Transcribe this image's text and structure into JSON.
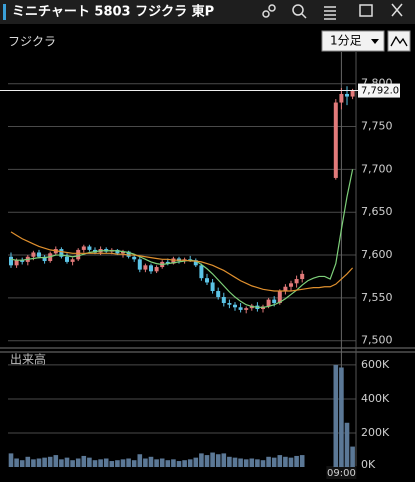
{
  "header": {
    "title": "ミニチャート 5803 フジクラ 東P"
  },
  "toolbar": {
    "symbol": "フジクラ",
    "interval": "1分足"
  },
  "chart_data": {
    "type": "candlestick",
    "categories": [
      null,
      null,
      null,
      null,
      null,
      null,
      null,
      null,
      null,
      null,
      null,
      null,
      null,
      null,
      null,
      null,
      null,
      null,
      null,
      null,
      null,
      null,
      null,
      null,
      null,
      null,
      null,
      null,
      null,
      null,
      null,
      null,
      null,
      null,
      null,
      null,
      null,
      null,
      null,
      null,
      null,
      null,
      null,
      null,
      null,
      null,
      null,
      null,
      null,
      null,
      null,
      null,
      null,
      null,
      null,
      null,
      null,
      null,
      null,
      "09:00",
      null,
      null
    ],
    "open": [
      7598,
      7588,
      7594,
      7592,
      7598,
      7603,
      7598,
      7593,
      7602,
      7607,
      7598,
      7592,
      7595,
      7606,
      7610,
      7606,
      7603,
      7607,
      7604,
      7606,
      7602,
      7604,
      7598,
      7595,
      7583,
      7588,
      7581,
      7586,
      7592,
      7590,
      7596,
      7593,
      7595,
      7594,
      7588,
      7573,
      7568,
      7558,
      7551,
      7544,
      7542,
      7539,
      7536,
      7538,
      7541,
      7537,
      7540,
      7548,
      7544,
      7558,
      7563,
      7567,
      7572,
      null,
      null,
      null,
      null,
      null,
      7690,
      7778,
      7788,
      7785
    ],
    "high": [
      7603,
      7596,
      7597,
      7600,
      7605,
      7606,
      7600,
      7604,
      7610,
      7609,
      7602,
      7597,
      7608,
      7612,
      7612,
      7609,
      7610,
      7609,
      7608,
      7607,
      7606,
      7605,
      7601,
      7598,
      7590,
      7590,
      7588,
      7594,
      7596,
      7598,
      7598,
      7597,
      7599,
      7596,
      7590,
      7578,
      7572,
      7562,
      7556,
      7548,
      7545,
      7544,
      7540,
      7543,
      7545,
      7542,
      7550,
      7552,
      7560,
      7566,
      7570,
      7576,
      7582,
      null,
      null,
      null,
      null,
      null,
      7782,
      7795,
      7797,
      7794
    ],
    "low": [
      7585,
      7585,
      7589,
      7588,
      7594,
      7596,
      7590,
      7591,
      7600,
      7596,
      7590,
      7588,
      7593,
      7603,
      7604,
      7601,
      7600,
      7602,
      7601,
      7600,
      7597,
      7596,
      7592,
      7580,
      7580,
      7578,
      7579,
      7584,
      7588,
      7589,
      7590,
      7590,
      7592,
      7586,
      7570,
      7565,
      7555,
      7548,
      7540,
      7538,
      7535,
      7533,
      7532,
      7535,
      7534,
      7533,
      7538,
      7540,
      7542,
      7554,
      7558,
      7562,
      7568,
      null,
      null,
      null,
      null,
      null,
      7688,
      7770,
      7775,
      7782
    ],
    "close": [
      7588,
      7594,
      7592,
      7598,
      7603,
      7598,
      7593,
      7602,
      7607,
      7598,
      7592,
      7595,
      7606,
      7610,
      7606,
      7603,
      7607,
      7604,
      7606,
      7602,
      7604,
      7598,
      7595,
      7583,
      7588,
      7581,
      7586,
      7592,
      7590,
      7596,
      7593,
      7595,
      7594,
      7588,
      7573,
      7568,
      7558,
      7551,
      7544,
      7542,
      7539,
      7536,
      7538,
      7541,
      7537,
      7540,
      7548,
      7544,
      7558,
      7563,
      7567,
      7572,
      7578,
      null,
      null,
      null,
      null,
      null,
      7778,
      7788,
      7785,
      7792
    ],
    "up_color": "#e27a7a",
    "down_color": "#5cc4e6",
    "series": [
      {
        "color": "#7ed07a",
        "values": [
          7595,
          7594,
          7594,
          7595,
          7596,
          7597,
          7597,
          7598,
          7600,
          7600,
          7599,
          7598,
          7599,
          7601,
          7603,
          7604,
          7605,
          7605,
          7605,
          7605,
          7604,
          7603,
          7601,
          7598,
          7595,
          7592,
          7590,
          7589,
          7590,
          7591,
          7592,
          7593,
          7594,
          7593,
          7589,
          7584,
          7578,
          7571,
          7564,
          7557,
          7551,
          7546,
          7542,
          7540,
          7539,
          7539,
          7540,
          7542,
          7545,
          7549,
          7554,
          7559,
          7565,
          7570,
          7573,
          7575,
          7575,
          7572,
          7590,
          7630,
          7668,
          7700
        ]
      },
      {
        "color": "#e0902e",
        "values": [
          7627,
          7623,
          7619,
          7616,
          7613,
          7610,
          7608,
          7606,
          7605,
          7604,
          7603,
          7602,
          7602,
          7602,
          7602,
          7602,
          7602,
          7602,
          7602,
          7601,
          7601,
          7600,
          7600,
          7599,
          7598,
          7597,
          7596,
          7595,
          7595,
          7594,
          7594,
          7594,
          7593,
          7593,
          7592,
          7590,
          7588,
          7585,
          7582,
          7578,
          7574,
          7570,
          7567,
          7564,
          7562,
          7560,
          7559,
          7558,
          7558,
          7558,
          7558,
          7559,
          7560,
          7561,
          7562,
          7562,
          7563,
          7563,
          7566,
          7572,
          7578,
          7585
        ]
      }
    ],
    "ylim": [
      7495,
      7837
    ],
    "yticks": [
      {
        "value": 7500,
        "label": "7,500"
      },
      {
        "value": 7550,
        "label": "7,550"
      },
      {
        "value": 7600,
        "label": "7,600"
      },
      {
        "value": 7650,
        "label": "7,650"
      },
      {
        "value": 7700,
        "label": "7,700"
      },
      {
        "value": 7750,
        "label": "7,750"
      },
      {
        "value": 7800,
        "label": "7,800"
      }
    ],
    "last_price": {
      "value": 7792,
      "label": "7,792.0"
    },
    "grid": true,
    "volume": {
      "title": "出来高",
      "color": "#5b7896",
      "values": [
        80000,
        50000,
        40000,
        60000,
        45000,
        50000,
        55000,
        60000,
        70000,
        45000,
        55000,
        40000,
        50000,
        65000,
        55000,
        40000,
        45000,
        50000,
        35000,
        40000,
        45000,
        50000,
        40000,
        75000,
        50000,
        60000,
        45000,
        50000,
        40000,
        45000,
        35000,
        40000,
        45000,
        55000,
        80000,
        70000,
        85000,
        75000,
        80000,
        60000,
        55000,
        50000,
        45000,
        50000,
        45000,
        40000,
        60000,
        55000,
        70000,
        60000,
        55000,
        65000,
        70000,
        null,
        null,
        null,
        null,
        null,
        600000,
        585000,
        260000,
        120000
      ],
      "ylim": [
        0,
        676000
      ],
      "yticks": [
        {
          "value": 0,
          "label": "0K"
        },
        {
          "value": 200000,
          "label": "200K"
        },
        {
          "value": 400000,
          "label": "400K"
        },
        {
          "value": 600000,
          "label": "600K"
        }
      ]
    }
  }
}
